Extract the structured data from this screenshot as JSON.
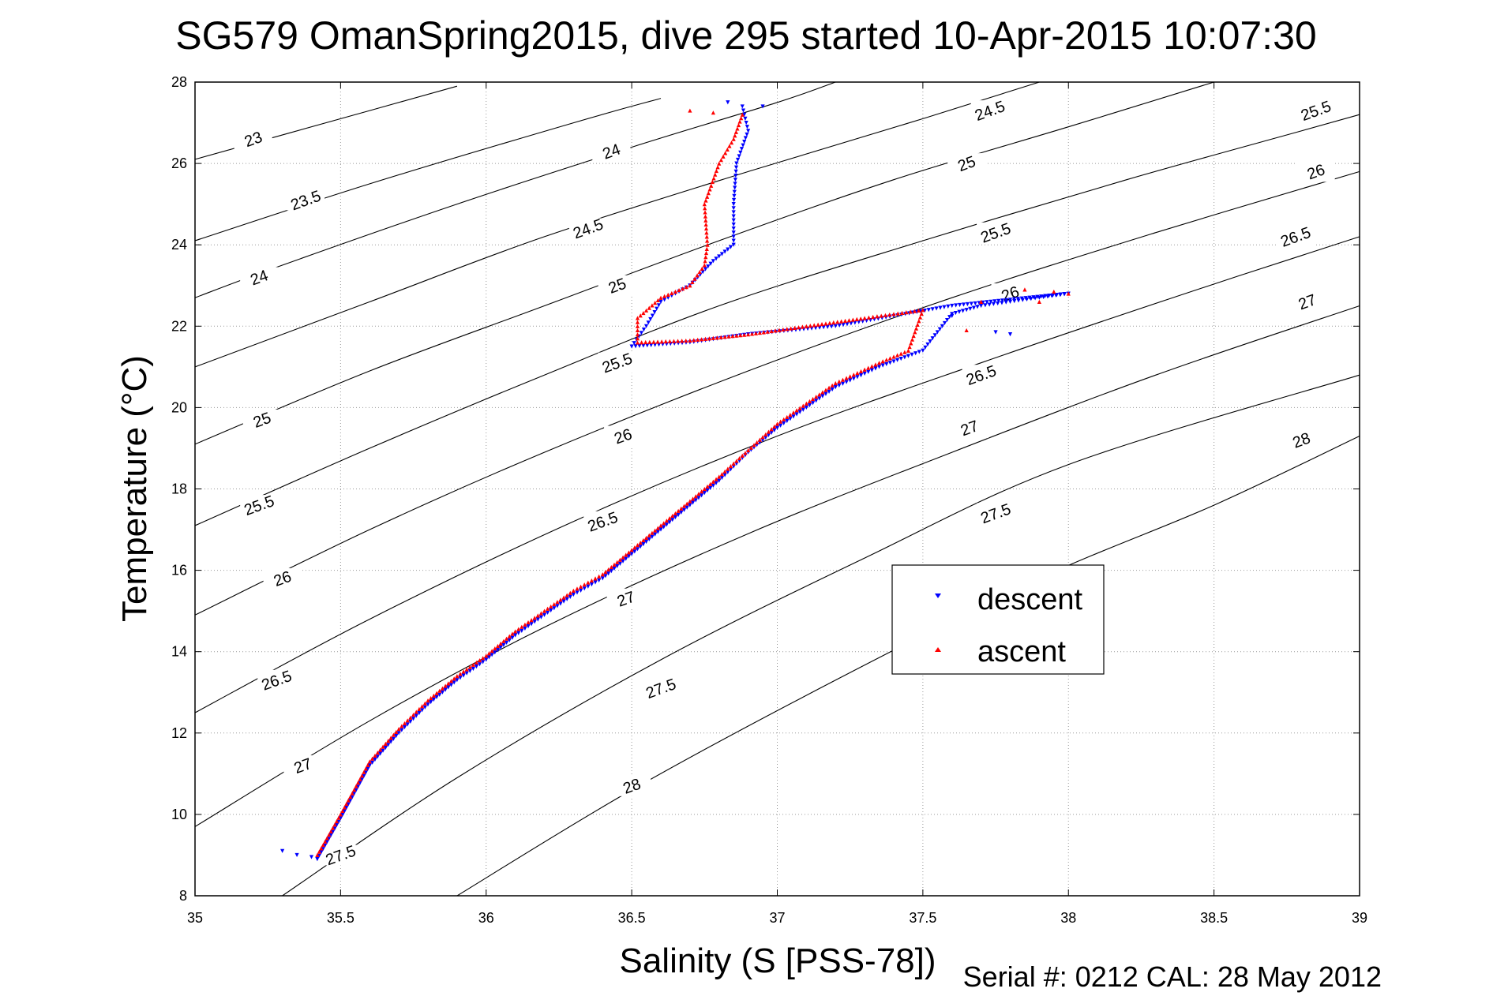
{
  "chart_data": {
    "type": "scatter",
    "title": "SG579 OmanSpring2015, dive 295 started 10-Apr-2015 10:07:30",
    "xlabel": "Salinity (S [PSS-78])",
    "ylabel": "Temperature (°C)",
    "footer": "Serial #: 0212  CAL: 28 May 2012",
    "xlim": [
      35,
      39
    ],
    "ylim": [
      8,
      28
    ],
    "xticks": [
      "35",
      "35.5",
      "36",
      "36.5",
      "37",
      "37.5",
      "38",
      "38.5",
      "39"
    ],
    "yticks": [
      "8",
      "10",
      "12",
      "14",
      "16",
      "18",
      "20",
      "22",
      "24",
      "26",
      "28"
    ],
    "grid": true,
    "legend_position": "lower-right",
    "colors": {
      "descent": "#0000ff",
      "ascent": "#ff0000",
      "contour": "#000000"
    },
    "density_contours": [
      {
        "label": "23",
        "points": [
          [
            35,
            26.1
          ],
          [
            35.6,
            27.3
          ],
          [
            35.9,
            27.9
          ]
        ]
      },
      {
        "label": "23.5",
        "points": [
          [
            35,
            24.1
          ],
          [
            35.6,
            25.5
          ],
          [
            36.3,
            27
          ],
          [
            36.6,
            27.6
          ]
        ]
      },
      {
        "label": "24",
        "points": [
          [
            35,
            22.7
          ],
          [
            35.3,
            23.5
          ],
          [
            35.9,
            25
          ],
          [
            36.5,
            26.4
          ],
          [
            37,
            27.5
          ],
          [
            37.2,
            28
          ]
        ]
      },
      {
        "label": "24.5",
        "points": [
          [
            35,
            21
          ],
          [
            35.6,
            22.6
          ],
          [
            36.2,
            24.2
          ],
          [
            36.9,
            25.8
          ],
          [
            37.5,
            27.1
          ],
          [
            37.9,
            28
          ]
        ]
      },
      {
        "label": "25",
        "points": [
          [
            35,
            19.1
          ],
          [
            35.6,
            20.9
          ],
          [
            36.2,
            22.5
          ],
          [
            36.8,
            24.1
          ],
          [
            37.4,
            25.6
          ],
          [
            38,
            26.9
          ],
          [
            38.5,
            28
          ]
        ]
      },
      {
        "label": "25.5",
        "points": [
          [
            35,
            17.1
          ],
          [
            35.6,
            19
          ],
          [
            36.2,
            20.8
          ],
          [
            36.8,
            22.5
          ],
          [
            37.5,
            24.1
          ],
          [
            38.2,
            25.6
          ],
          [
            38.8,
            26.8
          ],
          [
            39,
            27.2
          ]
        ]
      },
      {
        "label": "26",
        "points": [
          [
            35,
            14.9
          ],
          [
            35.6,
            17
          ],
          [
            36.2,
            18.9
          ],
          [
            36.9,
            20.9
          ],
          [
            37.6,
            22.7
          ],
          [
            38.3,
            24.3
          ],
          [
            39,
            25.8
          ]
        ]
      },
      {
        "label": "26.5",
        "points": [
          [
            35,
            12.5
          ],
          [
            35.6,
            14.8
          ],
          [
            36.3,
            17.2
          ],
          [
            37,
            19.3
          ],
          [
            37.7,
            21.1
          ],
          [
            38.4,
            22.8
          ],
          [
            39,
            24.2
          ]
        ]
      },
      {
        "label": "27",
        "points": [
          [
            35,
            9.7
          ],
          [
            35.6,
            12.3
          ],
          [
            36.2,
            14.6
          ],
          [
            36.9,
            16.9
          ],
          [
            37.6,
            18.9
          ],
          [
            38.3,
            20.8
          ],
          [
            39,
            22.5
          ]
        ]
      },
      {
        "label": "27.5",
        "points": [
          [
            35.3,
            8
          ],
          [
            35.9,
            10.9
          ],
          [
            36.6,
            13.8
          ],
          [
            37.3,
            16.3
          ],
          [
            38,
            18.6
          ],
          [
            39,
            20.8
          ]
        ]
      },
      {
        "label": "28",
        "points": [
          [
            35.9,
            8
          ],
          [
            36.5,
            10.6
          ],
          [
            37.2,
            13.3
          ],
          [
            37.9,
            15.8
          ],
          [
            38.5,
            17.6
          ],
          [
            39,
            19.3
          ]
        ]
      }
    ],
    "contour_labels": [
      {
        "text": "23",
        "x": 35.2,
        "y": 26.6
      },
      {
        "text": "23.5",
        "x": 35.38,
        "y": 25.1
      },
      {
        "text": "24",
        "x": 35.22,
        "y": 23.2
      },
      {
        "text": "24",
        "x": 36.43,
        "y": 26.3
      },
      {
        "text": "24.5",
        "x": 36.35,
        "y": 24.4
      },
      {
        "text": "24.5",
        "x": 37.73,
        "y": 27.3
      },
      {
        "text": "25",
        "x": 35.23,
        "y": 19.7
      },
      {
        "text": "25",
        "x": 36.45,
        "y": 23.0
      },
      {
        "text": "25",
        "x": 37.65,
        "y": 26.0
      },
      {
        "text": "25.5",
        "x": 35.22,
        "y": 17.6
      },
      {
        "text": "25.5",
        "x": 36.45,
        "y": 21.1
      },
      {
        "text": "25.5",
        "x": 37.75,
        "y": 24.3
      },
      {
        "text": "25.5",
        "x": 38.85,
        "y": 27.3
      },
      {
        "text": "26",
        "x": 35.3,
        "y": 15.8
      },
      {
        "text": "26",
        "x": 36.47,
        "y": 19.3
      },
      {
        "text": "26",
        "x": 37.8,
        "y": 22.8
      },
      {
        "text": "26",
        "x": 38.85,
        "y": 25.8
      },
      {
        "text": "26.5",
        "x": 35.28,
        "y": 13.3
      },
      {
        "text": "26.5",
        "x": 36.4,
        "y": 17.2
      },
      {
        "text": "26.5",
        "x": 37.7,
        "y": 20.8
      },
      {
        "text": "26.5",
        "x": 38.78,
        "y": 24.2
      },
      {
        "text": "27",
        "x": 35.37,
        "y": 11.2
      },
      {
        "text": "27",
        "x": 36.48,
        "y": 15.3
      },
      {
        "text": "27",
        "x": 37.66,
        "y": 19.5
      },
      {
        "text": "27",
        "x": 38.82,
        "y": 22.6
      },
      {
        "text": "27.5",
        "x": 35.5,
        "y": 9.0
      },
      {
        "text": "27.5",
        "x": 36.6,
        "y": 13.1
      },
      {
        "text": "27.5",
        "x": 37.75,
        "y": 17.4
      },
      {
        "text": "28",
        "x": 36.5,
        "y": 10.7
      },
      {
        "text": "28",
        "x": 38.8,
        "y": 19.2
      }
    ],
    "series": [
      {
        "name": "descent",
        "marker": "triangle-down",
        "color": "#0000ff",
        "path": [
          [
            35.42,
            8.9
          ],
          [
            35.5,
            9.9
          ],
          [
            35.6,
            11.2
          ],
          [
            35.7,
            12.0
          ],
          [
            35.8,
            12.7
          ],
          [
            35.9,
            13.3
          ],
          [
            36.0,
            13.8
          ],
          [
            36.1,
            14.4
          ],
          [
            36.2,
            14.9
          ],
          [
            36.3,
            15.4
          ],
          [
            36.4,
            15.8
          ],
          [
            36.5,
            16.4
          ],
          [
            36.6,
            17.0
          ],
          [
            36.7,
            17.6
          ],
          [
            36.8,
            18.2
          ],
          [
            36.9,
            18.9
          ],
          [
            37.0,
            19.5
          ],
          [
            37.1,
            20.0
          ],
          [
            37.2,
            20.5
          ],
          [
            37.35,
            21.0
          ],
          [
            37.5,
            21.4
          ],
          [
            37.6,
            22.3
          ],
          [
            37.7,
            22.5
          ],
          [
            37.8,
            22.6
          ],
          [
            37.9,
            22.7
          ],
          [
            38.0,
            22.8
          ],
          [
            37.6,
            22.5
          ],
          [
            37.2,
            22.0
          ],
          [
            36.9,
            21.8
          ],
          [
            36.7,
            21.6
          ],
          [
            36.5,
            21.5
          ],
          [
            36.55,
            22.0
          ],
          [
            36.6,
            22.6
          ],
          [
            36.7,
            23.0
          ],
          [
            36.78,
            23.6
          ],
          [
            36.85,
            24.0
          ],
          [
            36.85,
            25.0
          ],
          [
            36.86,
            26.0
          ],
          [
            36.9,
            26.8
          ],
          [
            36.88,
            27.4
          ]
        ],
        "extra_points": [
          [
            35.3,
            9.1
          ],
          [
            35.35,
            9.0
          ],
          [
            35.4,
            8.95
          ],
          [
            36.95,
            27.4
          ],
          [
            36.83,
            27.5
          ],
          [
            37.8,
            21.8
          ],
          [
            37.75,
            21.85
          ],
          [
            37.6,
            22.25
          ]
        ]
      },
      {
        "name": "ascent",
        "marker": "triangle-up",
        "color": "#ff0000",
        "path": [
          [
            35.42,
            9.0
          ],
          [
            35.5,
            10.0
          ],
          [
            35.6,
            11.3
          ],
          [
            35.7,
            12.1
          ],
          [
            35.8,
            12.8
          ],
          [
            35.9,
            13.4
          ],
          [
            36.0,
            13.9
          ],
          [
            36.1,
            14.5
          ],
          [
            36.2,
            15.0
          ],
          [
            36.3,
            15.5
          ],
          [
            36.4,
            15.9
          ],
          [
            36.5,
            16.5
          ],
          [
            36.6,
            17.1
          ],
          [
            36.7,
            17.7
          ],
          [
            36.8,
            18.3
          ],
          [
            36.9,
            18.95
          ],
          [
            37.0,
            19.6
          ],
          [
            37.1,
            20.1
          ],
          [
            37.2,
            20.6
          ],
          [
            37.35,
            21.1
          ],
          [
            37.45,
            21.4
          ],
          [
            37.5,
            22.4
          ],
          [
            37.4,
            22.3
          ],
          [
            37.3,
            22.2
          ],
          [
            37.1,
            22.0
          ],
          [
            36.9,
            21.8
          ],
          [
            36.7,
            21.65
          ],
          [
            36.52,
            21.6
          ],
          [
            36.52,
            22.2
          ],
          [
            36.6,
            22.7
          ],
          [
            36.7,
            23.0
          ],
          [
            36.75,
            23.5
          ],
          [
            36.76,
            24.0
          ],
          [
            36.75,
            25.0
          ],
          [
            36.8,
            26.0
          ],
          [
            36.85,
            26.6
          ],
          [
            36.88,
            27.2
          ]
        ],
        "extra_points": [
          [
            36.7,
            27.3
          ],
          [
            36.78,
            27.25
          ],
          [
            37.65,
            21.9
          ],
          [
            37.85,
            22.9
          ],
          [
            37.95,
            22.85
          ],
          [
            38.0,
            22.8
          ],
          [
            37.9,
            22.6
          ],
          [
            37.7,
            22.6
          ]
        ]
      }
    ]
  }
}
